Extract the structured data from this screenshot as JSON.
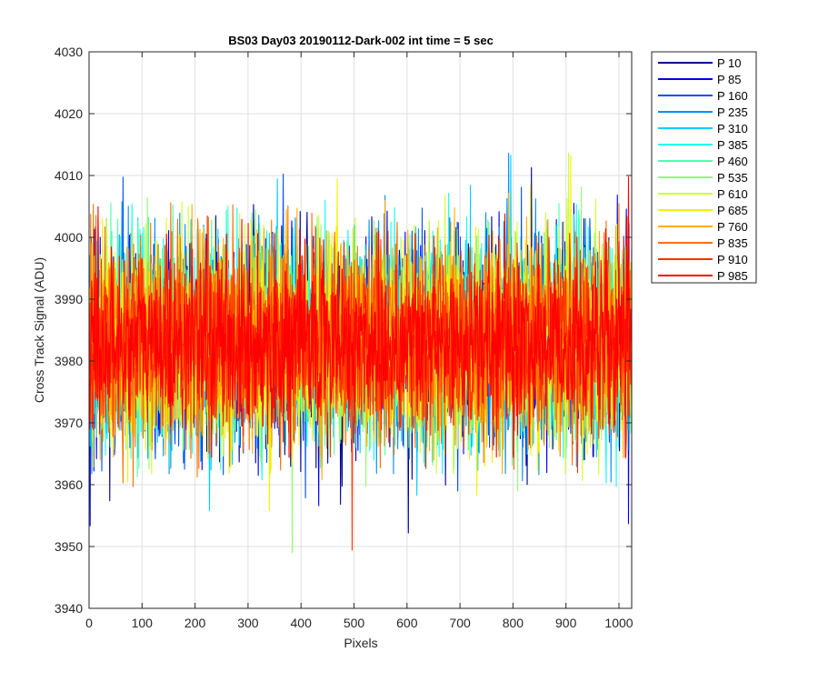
{
  "chart_data": {
    "type": "line",
    "title": "BS03 Day03 20190112-Dark-002 int time = 5 sec",
    "xlabel": "Pixels",
    "ylabel": "Cross Track Signal (ADU)",
    "xlim": [
      0,
      1024
    ],
    "ylim": [
      3940,
      4030
    ],
    "x_ticks": [
      0,
      100,
      200,
      300,
      400,
      500,
      600,
      700,
      800,
      900,
      1000
    ],
    "y_ticks": [
      3940,
      3950,
      3960,
      3970,
      3980,
      3990,
      4000,
      4010,
      4020,
      4030
    ],
    "grid": true,
    "legend_position": "outside-top-right",
    "x_points": 1024,
    "series": [
      {
        "name": "P 10",
        "color": "#00008f",
        "mean": 3983,
        "std": 8
      },
      {
        "name": "P 85",
        "color": "#0000ef",
        "mean": 3983,
        "std": 8
      },
      {
        "name": "P 160",
        "color": "#0050ff",
        "mean": 3983,
        "std": 8
      },
      {
        "name": "P 235",
        "color": "#008fff",
        "mean": 3983,
        "std": 8
      },
      {
        "name": "P 310",
        "color": "#00cfff",
        "mean": 3983,
        "std": 8
      },
      {
        "name": "P 385",
        "color": "#10ffef",
        "mean": 3983,
        "std": 8
      },
      {
        "name": "P 460",
        "color": "#50ffaf",
        "mean": 3983,
        "std": 8
      },
      {
        "name": "P 535",
        "color": "#8fff70",
        "mean": 3983,
        "std": 8
      },
      {
        "name": "P 610",
        "color": "#cfff30",
        "mean": 3983,
        "std": 8
      },
      {
        "name": "P 685",
        "color": "#ffef00",
        "mean": 3983,
        "std": 8
      },
      {
        "name": "P 760",
        "color": "#ffaf00",
        "mean": 3983,
        "std": 8
      },
      {
        "name": "P 835",
        "color": "#ff7000",
        "mean": 3983,
        "std": 8
      },
      {
        "name": "P 910",
        "color": "#ff3000",
        "mean": 3983,
        "std": 7
      },
      {
        "name": "P 985",
        "color": "#ff0000",
        "mean": 3983,
        "std": 7
      }
    ]
  }
}
